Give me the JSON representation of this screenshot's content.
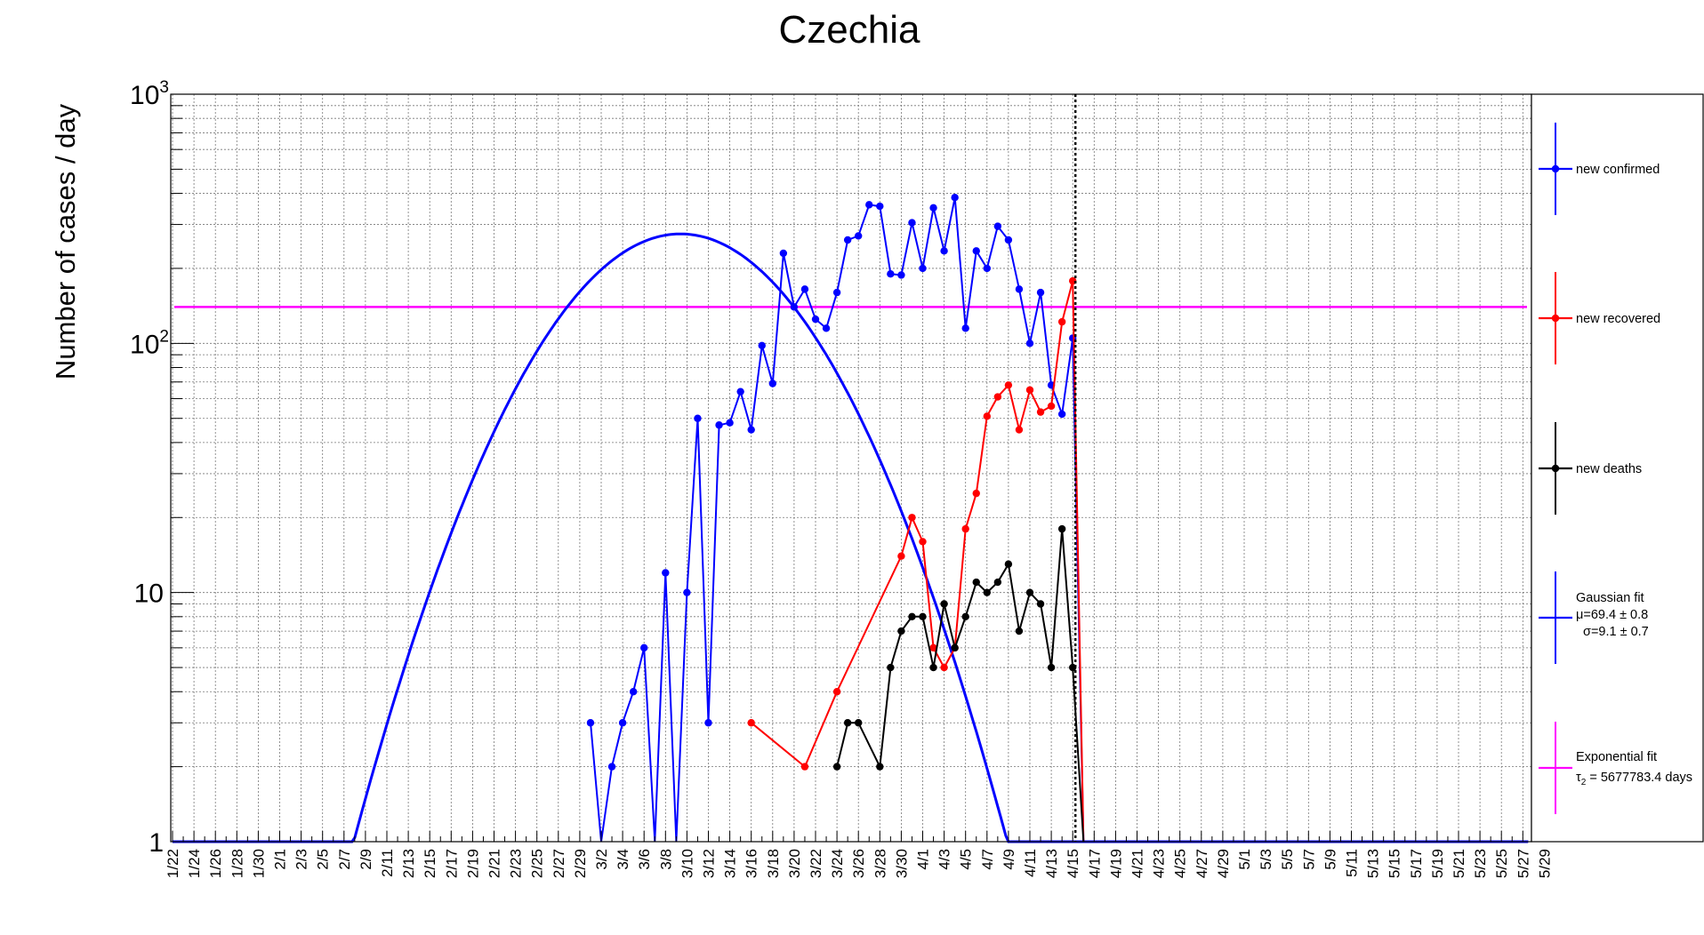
{
  "chart_data": {
    "type": "line",
    "title": "Czechia",
    "ylabel": "Number of cases / day",
    "xlabel": "",
    "y_scale": "log",
    "ylim": [
      1,
      1000
    ],
    "y_tick_labels": [
      {
        "value": 1,
        "label": "1"
      },
      {
        "value": 10,
        "label": "10"
      },
      {
        "value": 100,
        "label": "10",
        "sup": "2"
      },
      {
        "value": 1000,
        "label": "10",
        "sup": "3"
      }
    ],
    "x_tick_labels": [
      "1/22",
      "1/24",
      "1/26",
      "1/28",
      "1/30",
      "2/1",
      "2/3",
      "2/5",
      "2/7",
      "2/9",
      "2/11",
      "2/13",
      "2/15",
      "2/17",
      "2/19",
      "2/21",
      "2/23",
      "2/25",
      "2/27",
      "2/29",
      "3/2",
      "3/4",
      "3/6",
      "3/8",
      "3/10",
      "3/12",
      "3/14",
      "3/16",
      "3/18",
      "3/20",
      "3/22",
      "3/24",
      "3/26",
      "3/28",
      "3/30",
      "4/1",
      "4/3",
      "4/5",
      "4/7",
      "4/9",
      "4/11",
      "4/13",
      "4/15",
      "4/17",
      "4/19",
      "4/21",
      "4/23",
      "4/25",
      "4/27",
      "4/29",
      "5/1",
      "5/3",
      "5/5",
      "5/7",
      "5/9",
      "5/11",
      "5/13",
      "5/15",
      "5/17",
      "5/19",
      "5/21",
      "5/23",
      "5/25",
      "5/27",
      "5/29"
    ],
    "x_range_days": [
      "1/22",
      "5/30"
    ],
    "grid": true,
    "legend_position": "right",
    "current_date_marker": "4/15",
    "series": [
      {
        "name": "new confirmed",
        "color": "#0000ff",
        "points": [
          [
            "3/1",
            3
          ],
          [
            "3/2",
            0
          ],
          [
            "3/3",
            2
          ],
          [
            "3/4",
            3
          ],
          [
            "3/5",
            4
          ],
          [
            "3/6",
            6
          ],
          [
            "3/7",
            0
          ],
          [
            "3/8",
            12
          ],
          [
            "3/9",
            0
          ],
          [
            "3/10",
            10
          ],
          [
            "3/11",
            50
          ],
          [
            "3/12",
            3
          ],
          [
            "3/13",
            47
          ],
          [
            "3/14",
            48
          ],
          [
            "3/15",
            64
          ],
          [
            "3/16",
            45
          ],
          [
            "3/17",
            98
          ],
          [
            "3/18",
            69
          ],
          [
            "3/19",
            230
          ],
          [
            "3/20",
            140
          ],
          [
            "3/21",
            165
          ],
          [
            "3/22",
            125
          ],
          [
            "3/23",
            115
          ],
          [
            "3/24",
            160
          ],
          [
            "3/25",
            260
          ],
          [
            "3/26",
            270
          ],
          [
            "3/27",
            360
          ],
          [
            "3/28",
            355
          ],
          [
            "3/29",
            190
          ],
          [
            "3/30",
            188
          ],
          [
            "3/31",
            305
          ],
          [
            "4/1",
            200
          ],
          [
            "4/2",
            350
          ],
          [
            "4/3",
            235
          ],
          [
            "4/4",
            385
          ],
          [
            "4/5",
            115
          ],
          [
            "4/6",
            235
          ],
          [
            "4/7",
            200
          ],
          [
            "4/8",
            295
          ],
          [
            "4/9",
            260
          ],
          [
            "4/10",
            165
          ],
          [
            "4/11",
            100
          ],
          [
            "4/12",
            160
          ],
          [
            "4/13",
            68
          ],
          [
            "4/14",
            52
          ],
          [
            "4/15",
            105
          ],
          [
            "4/16",
            0
          ]
        ]
      },
      {
        "name": "new recovered",
        "color": "#ff0000",
        "points": [
          [
            "3/16",
            3
          ],
          [
            "3/21",
            2
          ],
          [
            "3/24",
            4
          ],
          [
            "3/30",
            14
          ],
          [
            "3/31",
            20
          ],
          [
            "4/1",
            16
          ],
          [
            "4/2",
            6
          ],
          [
            "4/3",
            5
          ],
          [
            "4/4",
            6
          ],
          [
            "4/5",
            18
          ],
          [
            "4/6",
            25
          ],
          [
            "4/7",
            51
          ],
          [
            "4/8",
            61
          ],
          [
            "4/9",
            68
          ],
          [
            "4/10",
            45
          ],
          [
            "4/11",
            65
          ],
          [
            "4/12",
            53
          ],
          [
            "4/13",
            56
          ],
          [
            "4/14",
            122
          ],
          [
            "4/15",
            178
          ],
          [
            "4/16",
            0
          ]
        ]
      },
      {
        "name": "new deaths",
        "color": "#000000",
        "points": [
          [
            "3/24",
            2
          ],
          [
            "3/25",
            3
          ],
          [
            "3/26",
            3
          ],
          [
            "3/28",
            2
          ],
          [
            "3/29",
            5
          ],
          [
            "3/30",
            7
          ],
          [
            "3/31",
            8
          ],
          [
            "4/1",
            8
          ],
          [
            "4/2",
            5
          ],
          [
            "4/3",
            9
          ],
          [
            "4/4",
            6
          ],
          [
            "4/5",
            8
          ],
          [
            "4/6",
            11
          ],
          [
            "4/7",
            10
          ],
          [
            "4/8",
            11
          ],
          [
            "4/9",
            13
          ],
          [
            "4/10",
            7
          ],
          [
            "4/11",
            10
          ],
          [
            "4/12",
            9
          ],
          [
            "4/13",
            5
          ],
          [
            "4/14",
            18
          ],
          [
            "4/15",
            5
          ],
          [
            "4/16",
            0
          ]
        ]
      }
    ],
    "fits": [
      {
        "name": "Gaussian fit",
        "label_lines": [
          "Gaussian fit",
          "μ=69.4 ± 0.8",
          "σ=9.1 ± 0.7"
        ],
        "color": "#0000ff",
        "mu": 69.4,
        "sigma": 9.1,
        "peak": 275
      },
      {
        "name": "Exponential fit",
        "label_lines": [
          "Exponential fit",
          "τ",
          "2",
          " = 5677783.4 days"
        ],
        "color": "#ff00ff",
        "level": 140
      }
    ]
  }
}
